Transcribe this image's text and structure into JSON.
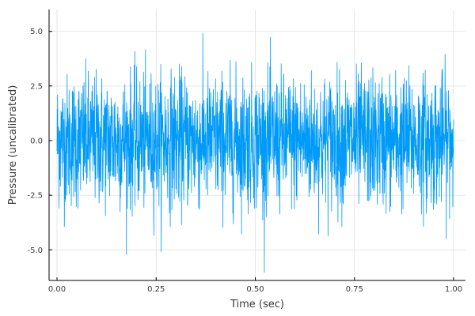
{
  "chart_data": {
    "type": "line",
    "xlabel": "Time (sec)",
    "ylabel": "Pressure (uncalibrated)",
    "xlim": [
      -0.02,
      1.03
    ],
    "ylim": [
      -6.4,
      6.0
    ],
    "x_ticks": [
      {
        "value": 0.0,
        "label": "0.00"
      },
      {
        "value": 0.25,
        "label": "0.25"
      },
      {
        "value": 0.5,
        "label": "0.50"
      },
      {
        "value": 0.75,
        "label": "0.75"
      },
      {
        "value": 1.0,
        "label": "1.00"
      }
    ],
    "y_ticks": [
      {
        "value": -5.0,
        "label": "-5.0"
      },
      {
        "value": -2.5,
        "label": "-2.5"
      },
      {
        "value": 0.0,
        "label": "0.0"
      },
      {
        "value": 2.5,
        "label": "2.5"
      },
      {
        "value": 5.0,
        "label": "5.0"
      }
    ],
    "grid": true,
    "legend": "none",
    "series": [
      {
        "color": "#009af9",
        "x_start": 0.0,
        "x_end": 1.0,
        "points": 2000,
        "noise": "gaussian",
        "mean": 0.0,
        "std_dev": 1.5,
        "min": -6.1,
        "max": 5.3
      }
    ]
  }
}
